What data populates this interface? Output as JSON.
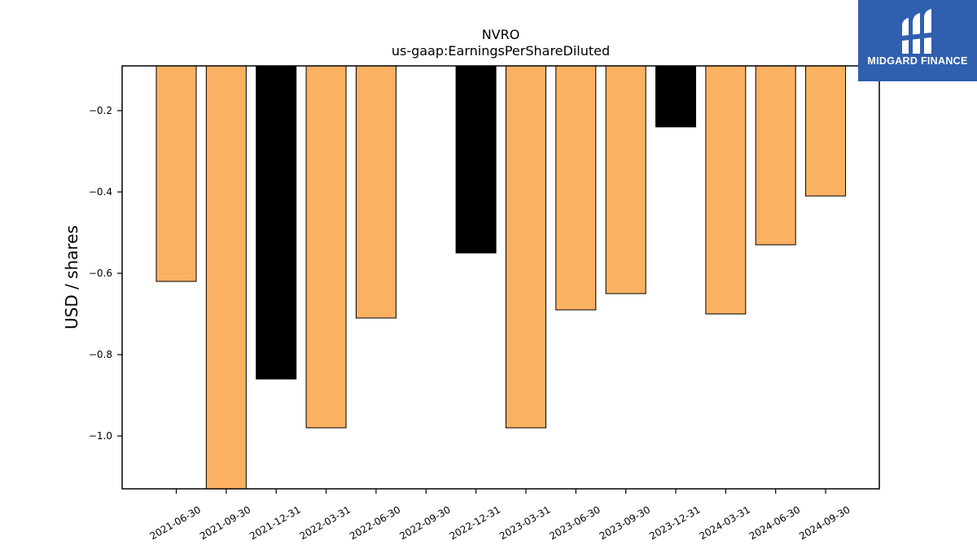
{
  "chart_data": {
    "type": "bar",
    "title": "NVRO",
    "subtitle": "us-gaap:EarningsPerShareDiluted",
    "xlabel": "",
    "ylabel": "USD / shares",
    "categories": [
      "2021-06-30",
      "2021-09-30",
      "2021-12-31",
      "2022-03-31",
      "2022-06-30",
      "2022-09-30",
      "2022-12-31",
      "2023-03-31",
      "2023-06-30",
      "2023-09-30",
      "2023-12-31",
      "2024-03-31",
      "2024-06-30",
      "2024-09-30"
    ],
    "values": [
      -0.62,
      -1.13,
      -0.86,
      -0.98,
      -0.71,
      null,
      -0.55,
      -0.98,
      -0.69,
      -0.65,
      -0.24,
      -0.7,
      -0.53,
      -0.41
    ],
    "bar_colors": [
      "#fbb162",
      "#fbb162",
      "#000000",
      "#fbb162",
      "#fbb162",
      null,
      "#000000",
      "#fbb162",
      "#fbb162",
      "#fbb162",
      "#000000",
      "#fbb162",
      "#fbb162",
      "#fbb162"
    ],
    "yticks": [
      -0.2,
      -0.4,
      -0.6,
      -0.8,
      -1.0
    ],
    "ytick_labels": [
      "−0.2",
      "−0.4",
      "−0.6",
      "−0.8",
      "−1.0"
    ],
    "ylim": [
      -1.13,
      -0.09
    ],
    "grid": false,
    "legend": "none"
  },
  "logo": {
    "text": "MIDGARD FINANCE",
    "color": "#2f5fae"
  }
}
